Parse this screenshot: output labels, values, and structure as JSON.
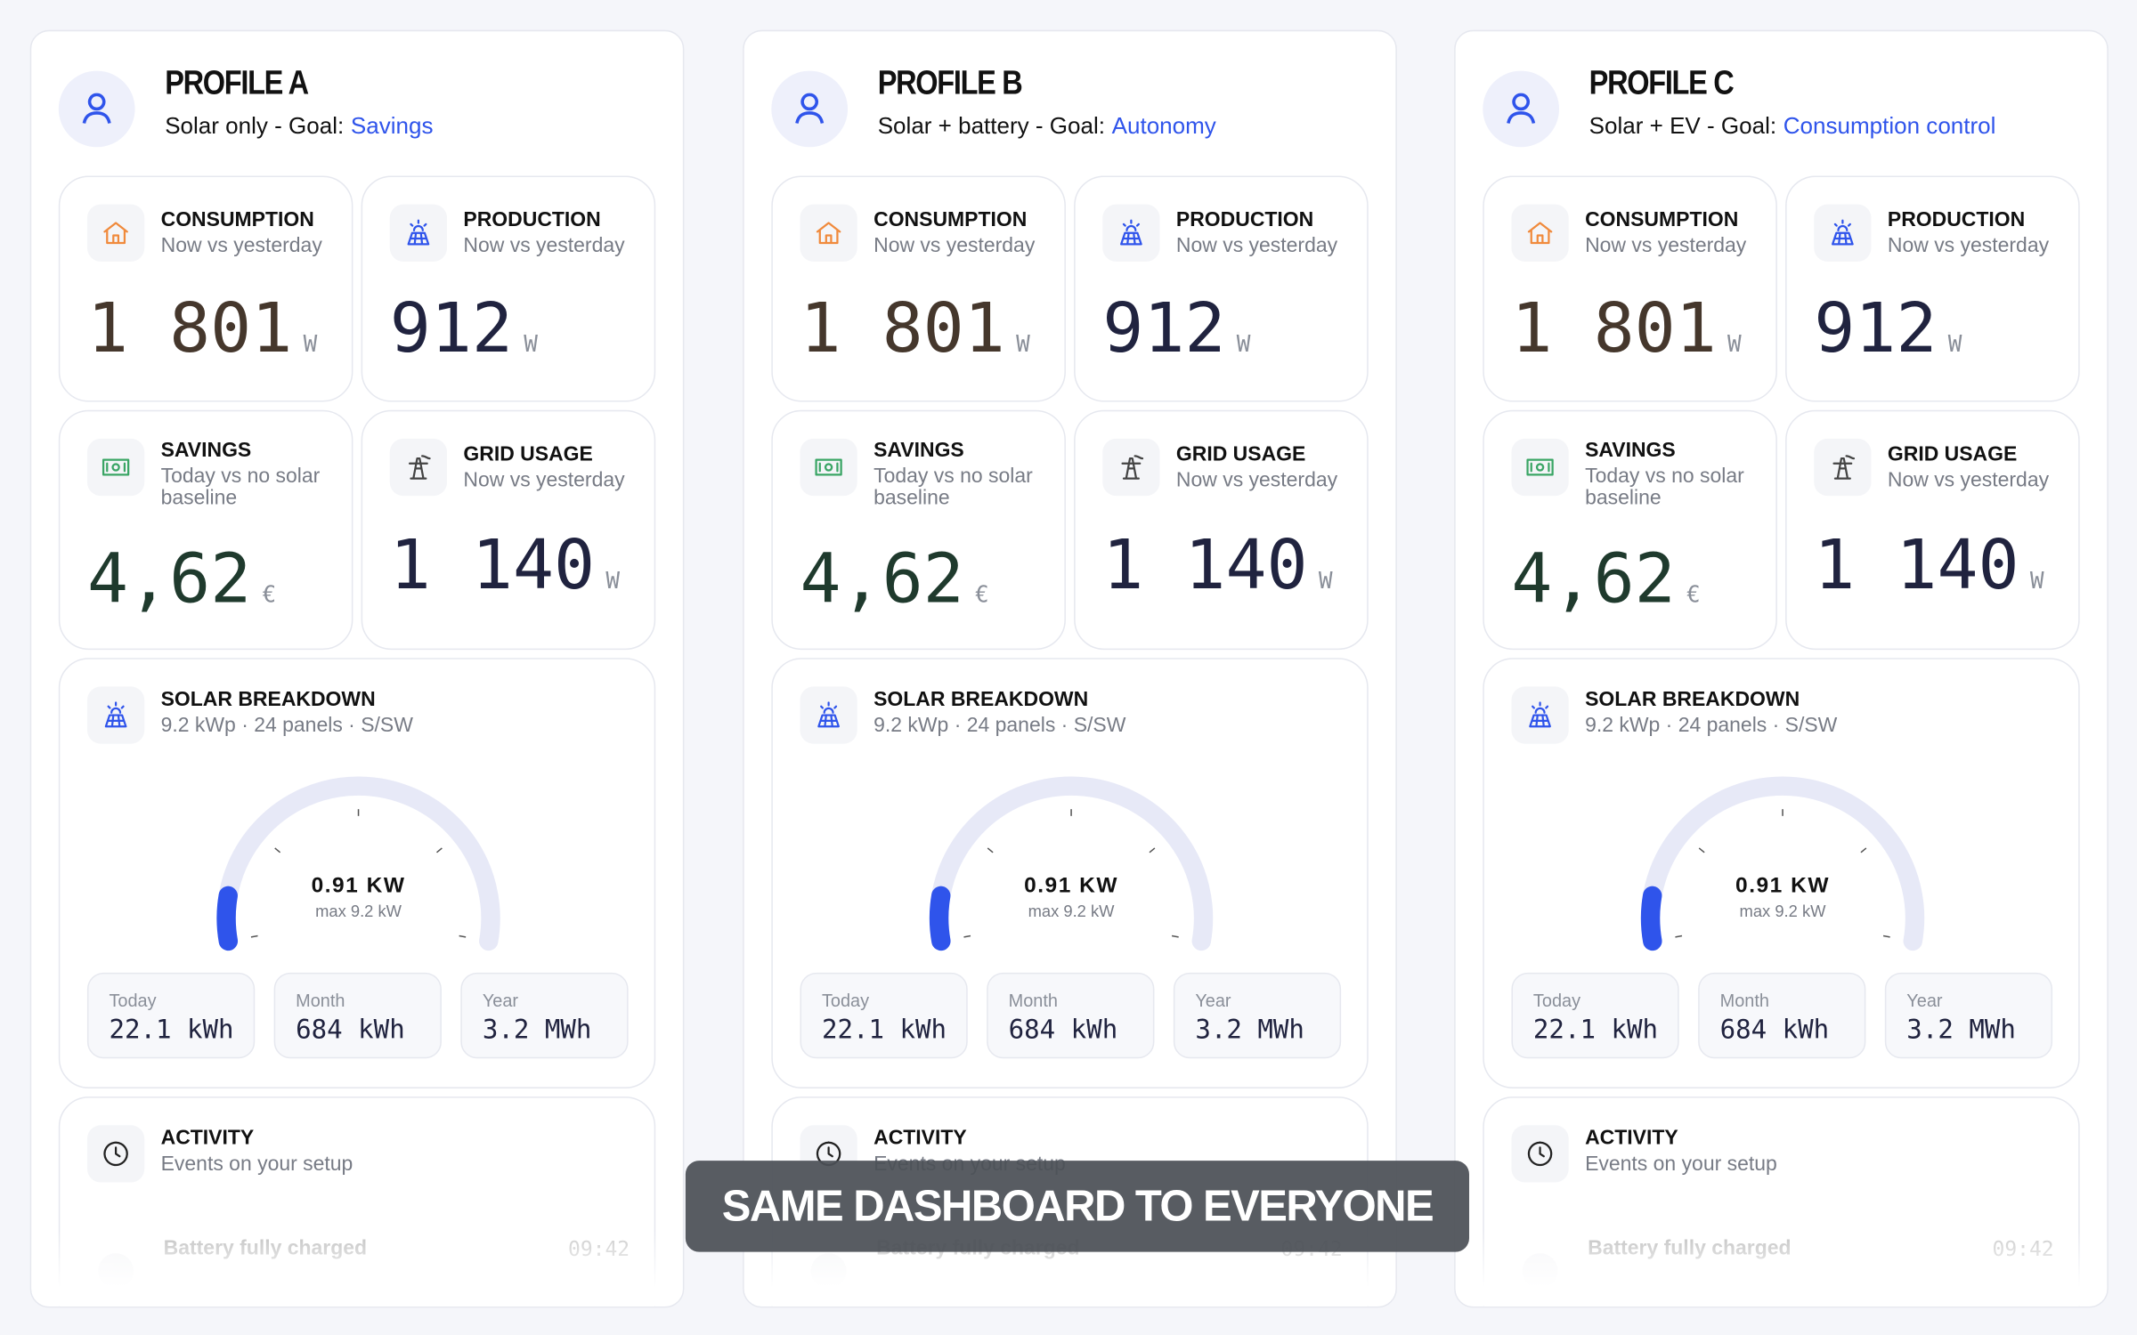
{
  "profiles": [
    {
      "name": "PROFILE A",
      "setup": "Solar only - Goal:",
      "goal": "Savings"
    },
    {
      "name": "PROFILE B",
      "setup": "Solar + battery - Goal:",
      "goal": "Autonomy"
    },
    {
      "name": "PROFILE C",
      "setup": "Solar + EV - Goal:",
      "goal": "Consumption control"
    }
  ],
  "dashboard": {
    "cards": [
      {
        "title": "CONSUMPTION",
        "subtitle": "Now vs yesterday",
        "value": "1 801",
        "unit": "W"
      },
      {
        "title": "PRODUCTION",
        "subtitle": "Now vs yesterday",
        "value": "912",
        "unit": "W"
      },
      {
        "title": "SAVINGS",
        "subtitle": "Today vs no solar baseline",
        "value": "4,62",
        "unit": "€"
      },
      {
        "title": "GRID USAGE",
        "subtitle": "Now vs yesterday",
        "value": "1 140",
        "unit": "W"
      }
    ],
    "solar": {
      "title": "SOLAR BREAKDOWN",
      "subtitle": "9.2 kWp · 24 panels · S/SW",
      "gauge": {
        "value": 0.91,
        "max": 9.2,
        "value_label": "0.91 KW",
        "max_label": "max 9.2 kW"
      },
      "stats": [
        {
          "label": "Today",
          "value": "22.1 kWh"
        },
        {
          "label": "Month",
          "value": "684 kWh"
        },
        {
          "label": "Year",
          "value": "3.2 MWh"
        }
      ]
    },
    "activity": {
      "title": "ACTIVITY",
      "subtitle": "Events on your setup",
      "events": [
        {
          "text": "Battery fully charged",
          "time": "09:42"
        }
      ]
    }
  },
  "banner": "SAME DASHBOARD TO EVERYONE"
}
